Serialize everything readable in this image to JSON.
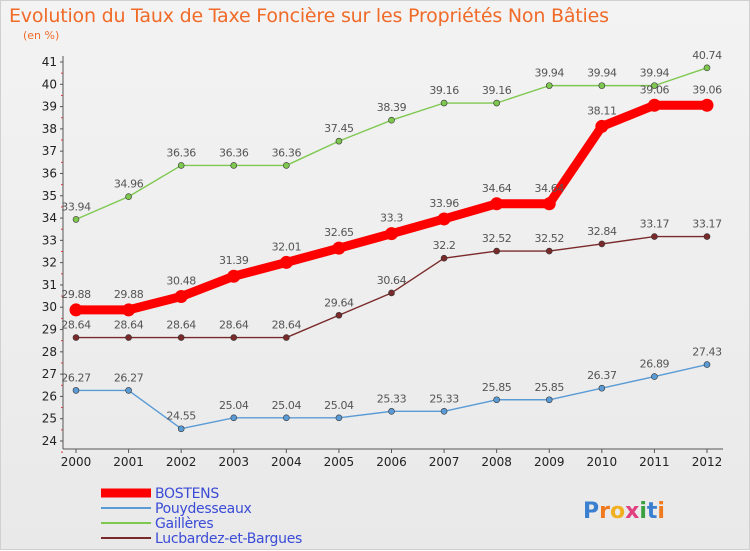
{
  "chart_data": {
    "type": "line",
    "title": "Evolution du Taux de Taxe Foncière sur les Propriétés Non Bâties",
    "subtitle": "(en %)",
    "x": [
      2000,
      2001,
      2002,
      2003,
      2004,
      2005,
      2006,
      2007,
      2008,
      2009,
      2010,
      2011,
      2012
    ],
    "ylim": [
      24,
      41
    ],
    "yticks": [
      24,
      25,
      26,
      27,
      28,
      29,
      30,
      31,
      32,
      33,
      34,
      35,
      36,
      37,
      38,
      39,
      40,
      41
    ],
    "grid": false,
    "legend_position": "bottom-left",
    "series": [
      {
        "name": "BOSTENS",
        "color": "#ff0000",
        "thick": true,
        "values": [
          29.88,
          29.88,
          30.48,
          31.39,
          32.01,
          32.65,
          33.3,
          33.96,
          34.64,
          34.64,
          38.11,
          39.06,
          39.06
        ],
        "labels": [
          "29.88",
          "29.88",
          "30.48",
          "31.39",
          "32.01",
          "32.65",
          "33.3",
          "33.96",
          "34.64",
          "34.64",
          "38.11",
          "39.06",
          "39.06"
        ]
      },
      {
        "name": "Pouydesseaux",
        "color": "#5b9bd5",
        "thick": false,
        "values": [
          26.27,
          26.27,
          24.55,
          25.04,
          25.04,
          25.04,
          25.33,
          25.33,
          25.85,
          25.85,
          26.37,
          26.89,
          27.43
        ],
        "labels": [
          "26.27",
          "26.27",
          "24.55",
          "25.04",
          "25.04",
          "25.04",
          "25.33",
          "25.33",
          "25.85",
          "25.85",
          "26.37",
          "26.89",
          "27.43"
        ]
      },
      {
        "name": "Gaillères",
        "color": "#7ec850",
        "thick": false,
        "values": [
          33.94,
          34.96,
          36.36,
          36.36,
          36.36,
          37.45,
          38.39,
          39.16,
          39.16,
          39.94,
          39.94,
          39.94,
          40.74
        ],
        "labels": [
          "33.94",
          "34.96",
          "36.36",
          "36.36",
          "36.36",
          "37.45",
          "38.39",
          "39.16",
          "39.16",
          "39.94",
          "39.94",
          "39.94",
          "40.74"
        ]
      },
      {
        "name": "Lucbardez-et-Bargues",
        "color": "#7a2a2a",
        "thick": false,
        "values": [
          28.64,
          28.64,
          28.64,
          28.64,
          28.64,
          29.64,
          30.64,
          32.2,
          32.52,
          32.52,
          32.84,
          33.17,
          33.17
        ],
        "labels": [
          "28.64",
          "28.64",
          "28.64",
          "28.64",
          "28.64",
          "29.64",
          "30.64",
          "32.2",
          "32.52",
          "32.52",
          "32.84",
          "33.17",
          "33.17"
        ]
      }
    ]
  },
  "logo": {
    "text": "Proxiti"
  }
}
